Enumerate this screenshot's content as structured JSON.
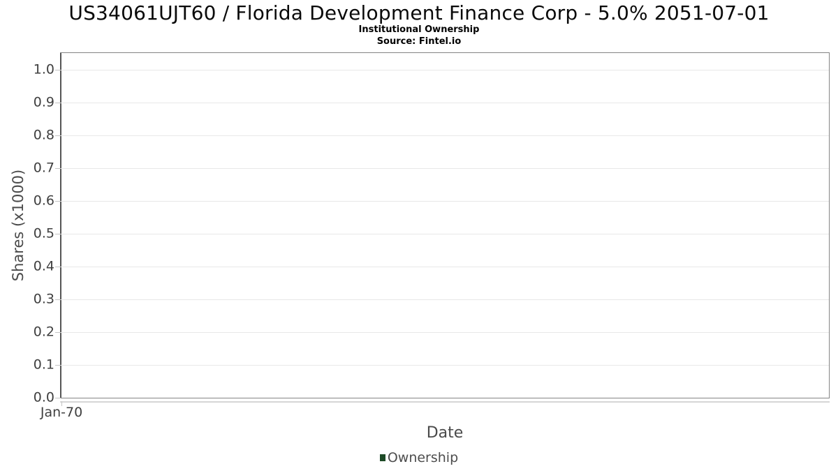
{
  "header": {
    "title": "US34061UJT60 / Florida Development Finance Corp - 5.0% 2051-07-01",
    "subtitle": "Institutional Ownership",
    "source": "Source: Fintel.io"
  },
  "chart_data": {
    "type": "bar",
    "title": "US34061UJT60 / Florida Development Finance Corp - 5.0% 2051-07-01",
    "subtitle": "Institutional Ownership",
    "source": "Source: Fintel.io",
    "xlabel": "Date",
    "ylabel": "Shares (x1000)",
    "ylim": [
      0.0,
      1.05
    ],
    "yticks": [
      0.0,
      0.1,
      0.2,
      0.3,
      0.4,
      0.5,
      0.6,
      0.7,
      0.8,
      0.9,
      1.0
    ],
    "ytick_labels": [
      "0.0",
      "0.1",
      "0.2",
      "0.3",
      "0.4",
      "0.5",
      "0.6",
      "0.7",
      "0.8",
      "0.9",
      "1.0"
    ],
    "xtick_labels": [
      "Jan-70"
    ],
    "grid": "horizontal",
    "legend": {
      "position": "bottom",
      "entries": [
        {
          "label": "Ownership",
          "color": "#1d4a26"
        }
      ]
    },
    "series": [
      {
        "name": "Ownership",
        "type": "bar",
        "color": "#1d4a26",
        "x": [],
        "values": []
      }
    ]
  },
  "colors": {
    "plot_border": "#848484",
    "axis_line": "#555555",
    "gridline": "#e8e8e8",
    "tick": "#c4c4c4",
    "axis_text": "#3f3f3f",
    "axis_title_text": "#4a4a4a",
    "legend_text": "#4d4d4d",
    "legend_green": "#1d4a26",
    "background": "#ffffff"
  }
}
